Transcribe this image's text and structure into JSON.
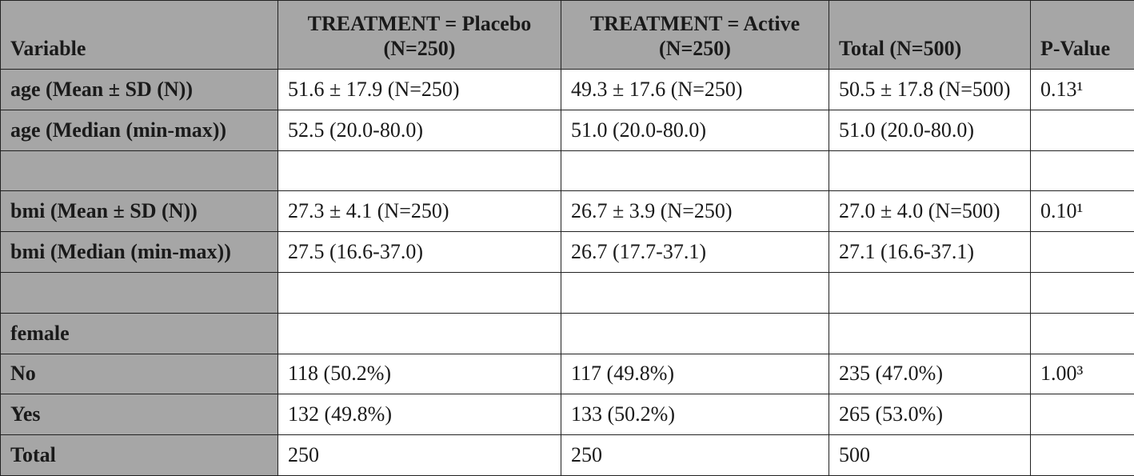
{
  "table": {
    "header": [
      "Variable",
      "TREATMENT = Placebo (N=250)",
      "TREATMENT = Active (N=250)",
      "Total (N=500)",
      "P-Value"
    ],
    "rows": [
      [
        "age (Mean ± SD (N))",
        "51.6 ± 17.9 (N=250)",
        "49.3 ± 17.6 (N=250)",
        "50.5 ± 17.8 (N=500)",
        "0.13¹"
      ],
      [
        "age (Median (min-max))",
        "52.5 (20.0-80.0)",
        "51.0 (20.0-80.0)",
        "51.0 (20.0-80.0)",
        null
      ],
      [
        null,
        null,
        null,
        null,
        null
      ],
      [
        "bmi (Mean ± SD (N))",
        "27.3 ± 4.1 (N=250)",
        "26.7 ± 3.9 (N=250)",
        "27.0 ± 4.0 (N=500)",
        "0.10¹"
      ],
      [
        "bmi (Median (min-max))",
        "27.5 (16.6-37.0)",
        "26.7 (17.7-37.1)",
        "27.1 (16.6-37.1)",
        null
      ],
      [
        null,
        null,
        null,
        null,
        null
      ],
      [
        "female",
        null,
        null,
        null,
        null
      ],
      [
        "No",
        "118 (50.2%)",
        "117 (49.8%)",
        "235 (47.0%)",
        "1.00³"
      ],
      [
        "Yes",
        "132 (49.8%)",
        "133 (50.2%)",
        "265 (53.0%)",
        null
      ],
      [
        "Total",
        "250",
        "250",
        "500",
        null
      ]
    ]
  }
}
